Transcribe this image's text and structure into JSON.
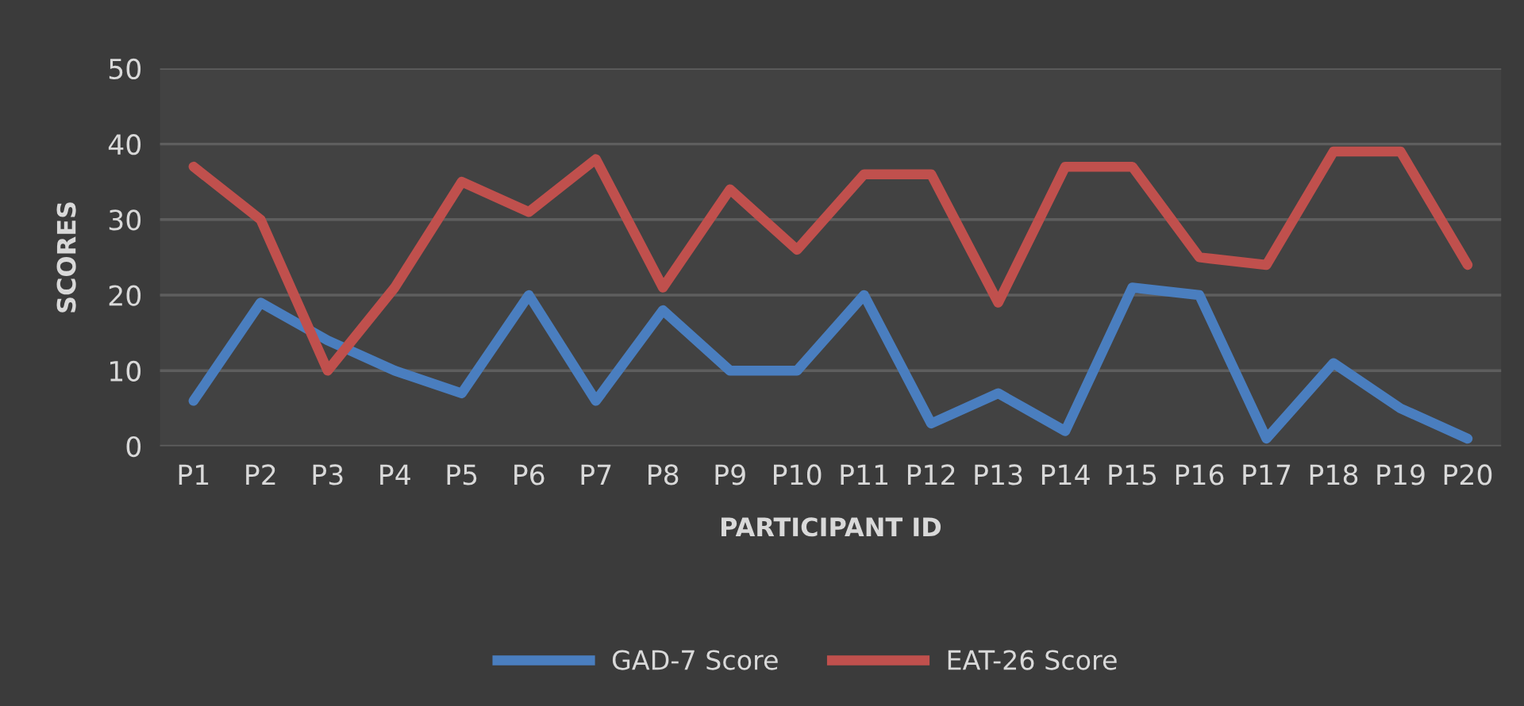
{
  "chart_data": {
    "type": "line",
    "xlabel": "PARTICIPANT ID",
    "ylabel": "SCORES",
    "categories": [
      "P1",
      "P2",
      "P3",
      "P4",
      "P5",
      "P6",
      "P7",
      "P8",
      "P9",
      "P10",
      "P11",
      "P12",
      "P13",
      "P14",
      "P15",
      "P16",
      "P17",
      "P18",
      "P19",
      "P20"
    ],
    "series": [
      {
        "name": "GAD-7 Score",
        "color": "#4a7ebf",
        "values": [
          6,
          19,
          14,
          10,
          7,
          20,
          6,
          18,
          10,
          10,
          20,
          3,
          7,
          2,
          21,
          20,
          1,
          11,
          5,
          1
        ]
      },
      {
        "name": "EAT-26 Score",
        "color": "#c0504d",
        "values": [
          37,
          30,
          10,
          21,
          35,
          31,
          38,
          21,
          34,
          26,
          36,
          36,
          19,
          37,
          37,
          25,
          24,
          39,
          39,
          24
        ]
      }
    ],
    "ylim": [
      0,
      50
    ],
    "yticks": [
      0,
      10,
      20,
      30,
      40,
      50
    ],
    "grid": "y",
    "legend": "bottom",
    "marker": "none",
    "line_style": "solid"
  }
}
